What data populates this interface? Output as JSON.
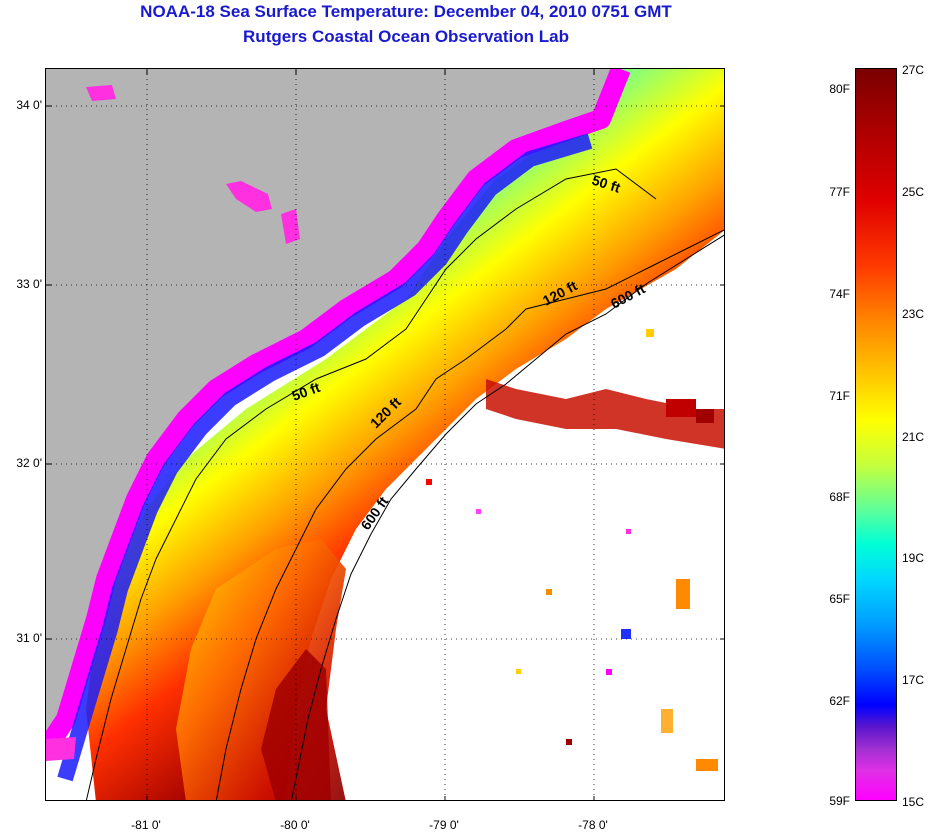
{
  "header": {
    "title": "NOAA-18 Sea Surface Temperature:  December 04, 2010 0751 GMT",
    "subtitle": "Rutgers Coastal Ocean Observation Lab"
  },
  "map": {
    "lat_labels": [
      "34 0'",
      "33 0'",
      "32 0'",
      "31 0'"
    ],
    "lon_labels": [
      "-81 0'",
      "-80 0'",
      "-79 0'",
      "-78 0'"
    ],
    "contour_labels": [
      "50 ft",
      "120 ft",
      "600 ft",
      "50 ft",
      "120 ft",
      "600 ft"
    ],
    "colors": {
      "land": "#b4b4b4",
      "no_data": "#ffffff",
      "coldest": "#ff00ff",
      "warmest": "#7a0000"
    }
  },
  "colorbar": {
    "fahrenheit_labels": [
      "80F",
      "77F",
      "74F",
      "71F",
      "68F",
      "65F",
      "62F",
      "59F"
    ],
    "celsius_labels": [
      "27C",
      "25C",
      "23C",
      "21C",
      "19C",
      "17C",
      "15C"
    ]
  }
}
